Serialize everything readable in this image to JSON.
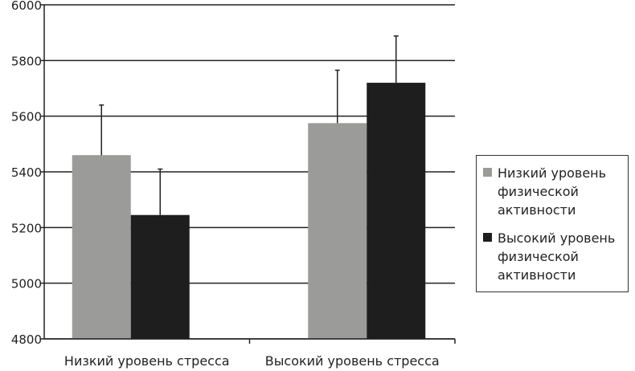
{
  "chart_data": {
    "type": "bar",
    "title": "",
    "xlabel": "",
    "ylabel": "",
    "ylim": [
      4800,
      6000
    ],
    "yticks": [
      4800,
      5000,
      5200,
      5400,
      5600,
      5800,
      6000
    ],
    "grid": true,
    "legend_position": "right",
    "categories": [
      "Низкий уровень стресса",
      "Высокий уровень стресса"
    ],
    "series": [
      {
        "name": "Низкий уровень физической активности",
        "color": "#9b9b9a",
        "values": [
          5460,
          5575
        ],
        "error_upper": [
          5640,
          5765
        ]
      },
      {
        "name": "Высокий уровень физической активности",
        "color": "#1e1e1e",
        "values": [
          5245,
          5720
        ],
        "error_upper": [
          5410,
          5888
        ]
      }
    ]
  }
}
